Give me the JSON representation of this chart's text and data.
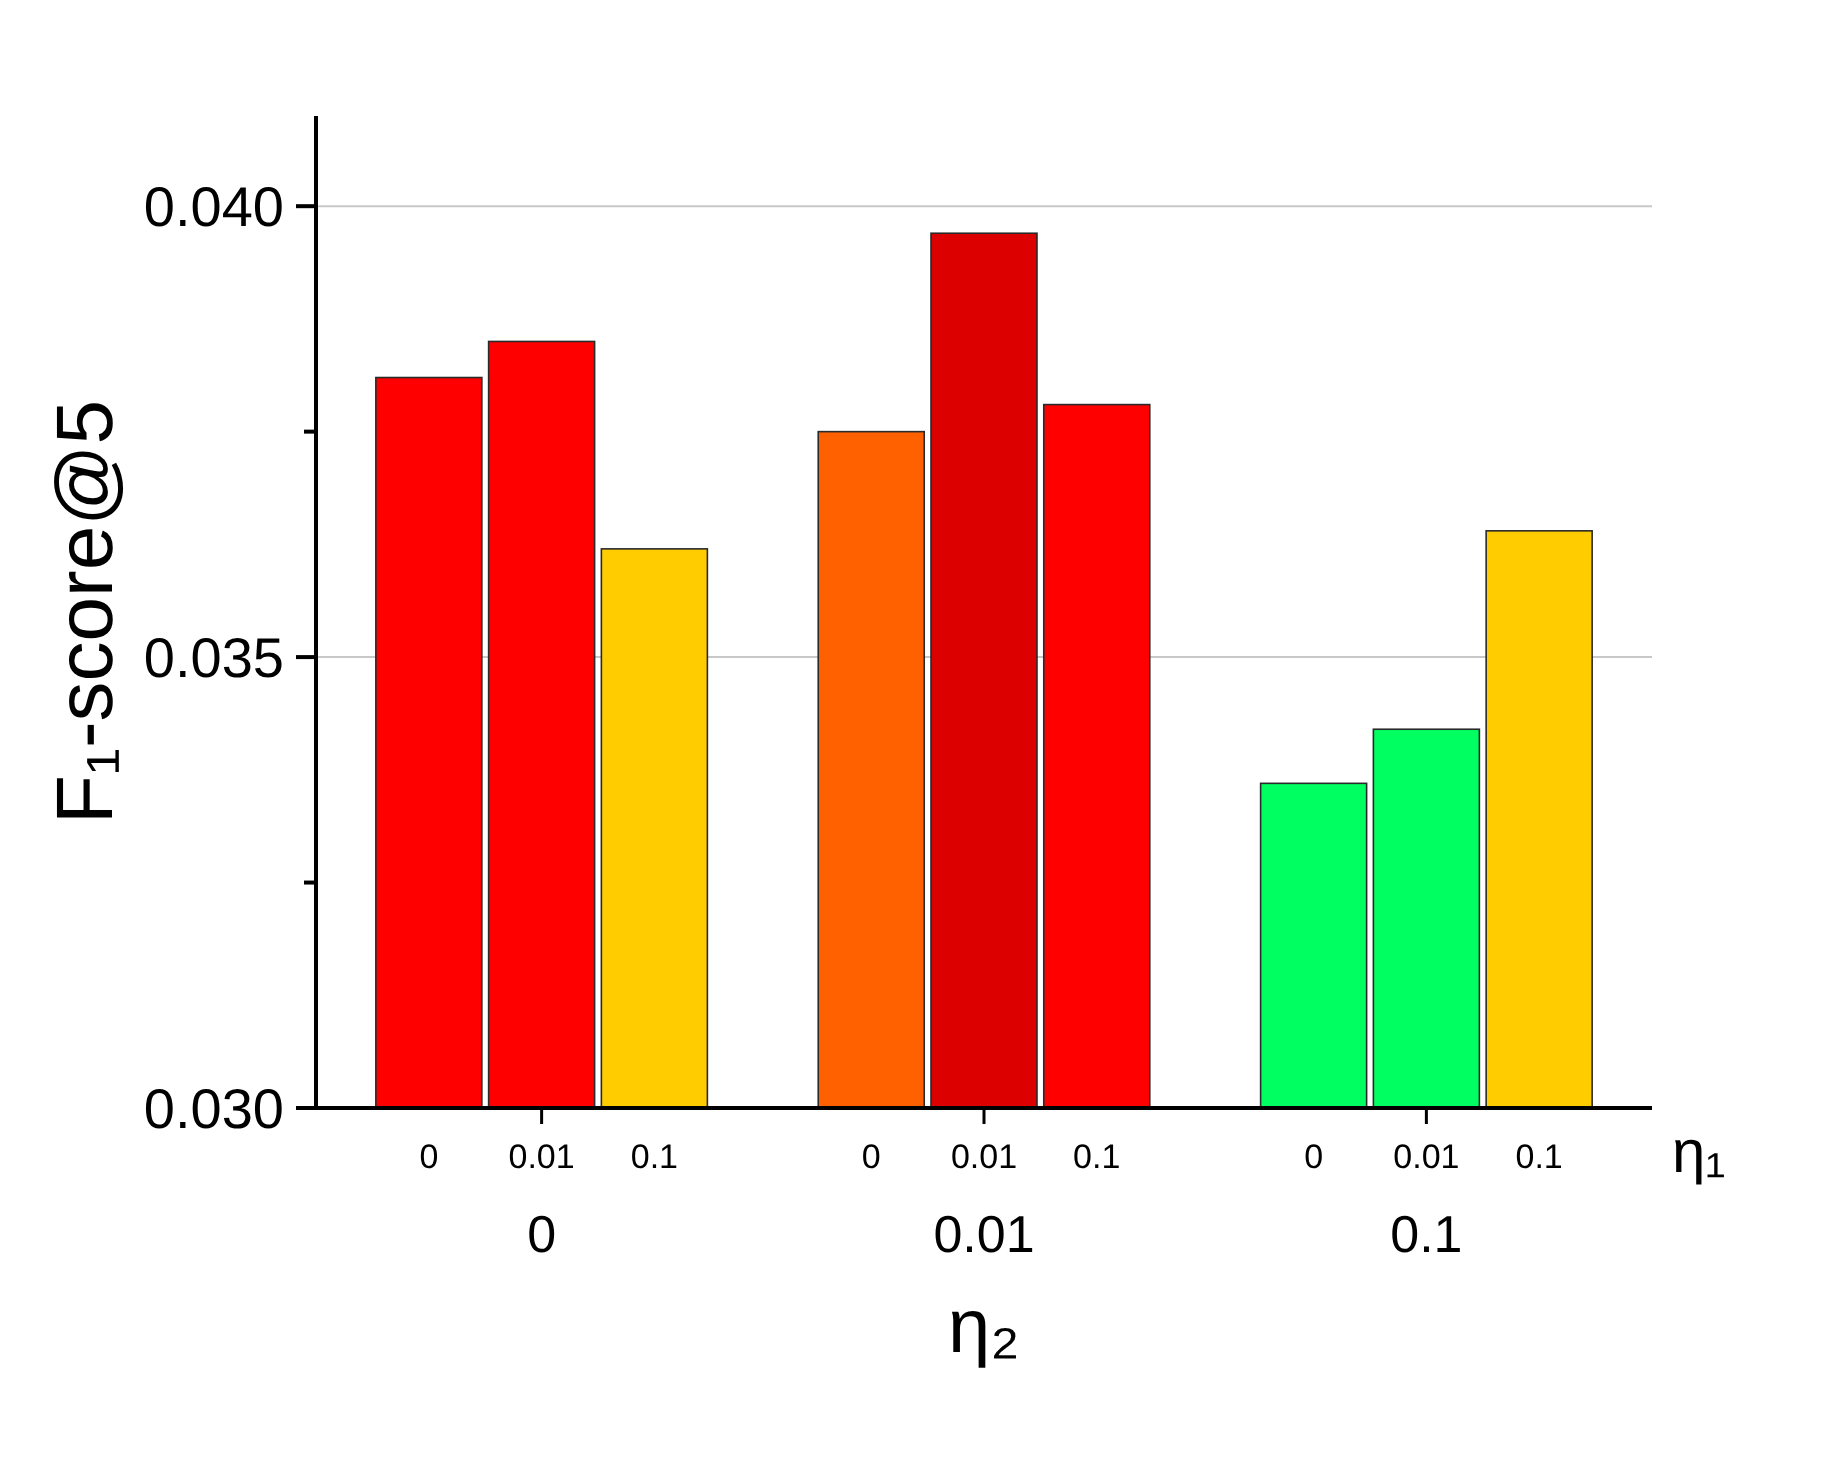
{
  "chart_data": {
    "type": "bar",
    "xlabel": "η₂",
    "ylabel": "F₁-score@5",
    "legend_title": "η₁",
    "categories": [
      "0",
      "0.01",
      "0.1"
    ],
    "series": [
      {
        "name": "0",
        "colors": [
          "#ff0000",
          "#ff6000",
          "#00ff60"
        ],
        "values": [
          0.0381,
          0.0375,
          0.0336
        ]
      },
      {
        "name": "0.01",
        "colors": [
          "#ff0000",
          "#dd0000",
          "#00ff60"
        ],
        "values": [
          0.0385,
          0.0397,
          0.0342
        ]
      },
      {
        "name": "0.1",
        "colors": [
          "#ffcc00",
          "#ff0000",
          "#ffcc00"
        ],
        "values": [
          0.0362,
          0.0378,
          0.0364
        ]
      }
    ],
    "ylim": [
      0.03,
      0.041
    ],
    "yticks": [
      {
        "value": 0.03,
        "label": "0.030"
      },
      {
        "value": 0.0325,
        "label": null
      },
      {
        "value": 0.035,
        "label": "0.035"
      },
      {
        "value": 0.0375,
        "label": null
      },
      {
        "value": 0.04,
        "label": "0.040"
      }
    ],
    "grid": "y"
  }
}
